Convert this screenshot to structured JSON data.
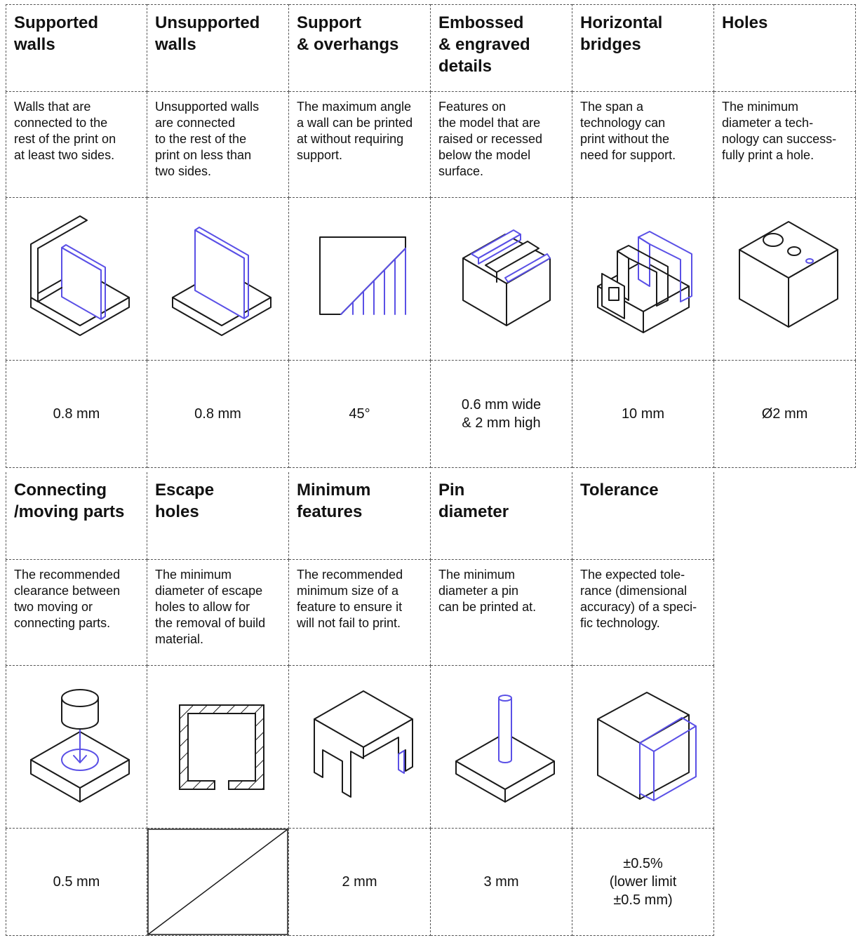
{
  "accent_color": "#5a50e6",
  "line_color": "#1a1a1a",
  "features": [
    {
      "title": "Supported\nwalls",
      "description": "Walls that are\nconnected to the\nrest of the print on\nat least two sides.",
      "value": "0.8 mm",
      "icon": "supported-walls-icon"
    },
    {
      "title": "Unsupported\nwalls",
      "description": "Unsupported walls\nare connected\nto the rest of the\nprint on less than\ntwo sides.",
      "value": "0.8 mm",
      "icon": "unsupported-walls-icon"
    },
    {
      "title": "Support\n& overhangs",
      "description": "The maximum angle\na wall can be printed\nat without requiring\nsupport.",
      "value": "45°",
      "icon": "overhang-angle-icon"
    },
    {
      "title": "Embossed\n& engraved\ndetails",
      "description": "Features on\nthe model that are\nraised or recessed\nbelow the model\nsurface.",
      "value": "0.6 mm wide\n& 2 mm high",
      "icon": "embossed-engraved-icon"
    },
    {
      "title": "Horizontal\nbridges",
      "description": "The span a\ntechnology can\nprint without the\nneed for support.",
      "value": "10 mm",
      "icon": "horizontal-bridges-icon"
    },
    {
      "title": "Holes",
      "description": "The minimum\ndiameter a tech-\nnology can success-\nfully print a hole.",
      "value": "Ø2 mm",
      "icon": "holes-icon"
    },
    {
      "title": "Connecting\n/moving parts",
      "description": "The recommended\nclearance between\ntwo moving or\nconnecting parts.",
      "value": "0.5 mm",
      "icon": "connecting-parts-icon"
    },
    {
      "title": "Escape\nholes",
      "description": "The minimum\ndiameter of escape\nholes to allow for\nthe removal of build\nmaterial.",
      "value": "",
      "icon": "escape-holes-icon"
    },
    {
      "title": "Minimum\nfeatures",
      "description": "The recommended\nminimum size of a\nfeature to ensure it\nwill not fail to print.",
      "value": "2 mm",
      "icon": "minimum-features-icon"
    },
    {
      "title": "Pin\ndiameter",
      "description": "The minimum\ndiameter a pin\ncan be printed at.",
      "value": "3 mm",
      "icon": "pin-diameter-icon"
    },
    {
      "title": "Tolerance",
      "description": "The expected tole-\nrance (dimensional\naccuracy) of a speci-\nfic technology.",
      "value": "±0.5%\n(lower limit\n±0.5 mm)",
      "icon": "tolerance-icon"
    }
  ]
}
